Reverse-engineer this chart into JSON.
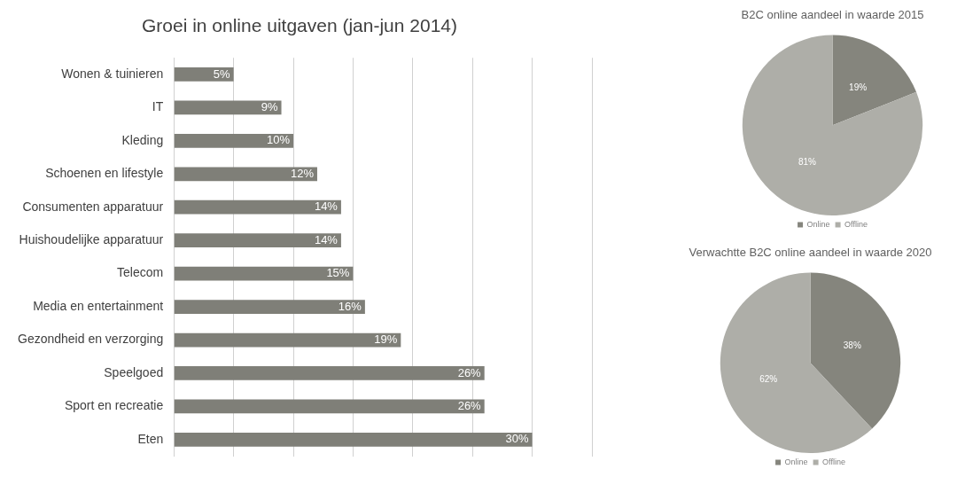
{
  "chart_data": [
    {
      "type": "bar",
      "title": "Groei in online uitgaven (jan-jun 2014)",
      "orientation": "horizontal",
      "categories": [
        "Wonen & tuinieren",
        "IT",
        "Kleding",
        "Schoenen en lifestyle",
        "Consumenten apparatuur",
        "Huishoudelijke apparatuur",
        "Telecom",
        "Media en entertainment",
        "Gezondheid en verzorging",
        "Speelgoed",
        "Sport en recreatie",
        "Eten"
      ],
      "values": [
        5,
        9,
        10,
        12,
        14,
        14,
        15,
        16,
        19,
        26,
        26,
        30
      ],
      "value_labels": [
        "5%",
        "9%",
        "10%",
        "12%",
        "14%",
        "14%",
        "15%",
        "16%",
        "19%",
        "26%",
        "26%",
        "30%"
      ],
      "color": "#7f7f78",
      "xlim": [
        0,
        35
      ],
      "tick_labels": "y",
      "grid": "x",
      "legend": false
    },
    {
      "type": "pie",
      "title": "B2C online aandeel in waarde 2015",
      "categories": [
        "Online",
        "Offline"
      ],
      "values": [
        19,
        81
      ],
      "value_labels": [
        "19%",
        "81%"
      ],
      "colors": [
        "#85857d",
        "#aeaea8"
      ],
      "legend": "bottom"
    },
    {
      "type": "pie",
      "title": "Verwachtte B2C online aandeel in waarde 2020",
      "categories": [
        "Online",
        "Offline"
      ],
      "values": [
        38,
        62
      ],
      "value_labels": [
        "38%",
        "62%"
      ],
      "colors": [
        "#85857d",
        "#aeaea8"
      ],
      "legend": "bottom"
    }
  ]
}
